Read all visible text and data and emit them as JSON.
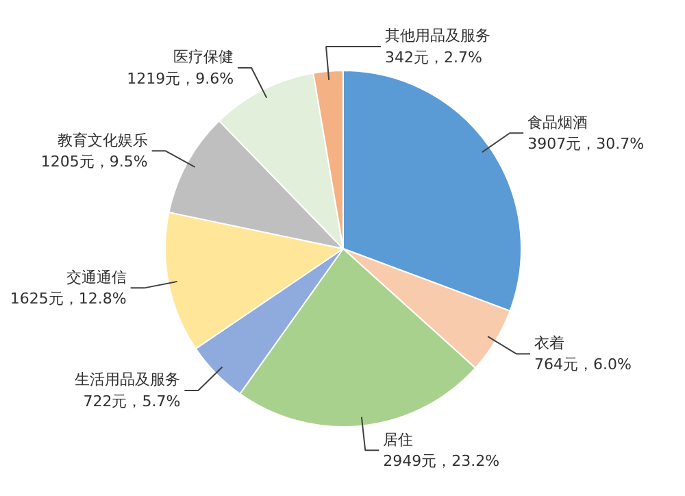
{
  "chart_data": {
    "type": "pie",
    "categories": [
      "食品烟酒",
      "衣着",
      "居住",
      "生活用品及服务",
      "交通通信",
      "教育文化娱乐",
      "医疗保健",
      "其他用品及服务"
    ],
    "values": [
      3907,
      764,
      2949,
      722,
      1625,
      1205,
      1219,
      342
    ],
    "value_labels": [
      "3907元，30.7%",
      "764元，6.0%",
      "2949元，23.2%",
      "722元，5.7%",
      "1625元，12.8%",
      "1205元，9.5%",
      "1219元，9.6%",
      "342元，2.7%"
    ],
    "colors": [
      "#5b9bd5",
      "#f8cbad",
      "#a9d18e",
      "#8faadc",
      "#ffe699",
      "#bfbfbf",
      "#e2efda",
      "#f4b183"
    ]
  }
}
